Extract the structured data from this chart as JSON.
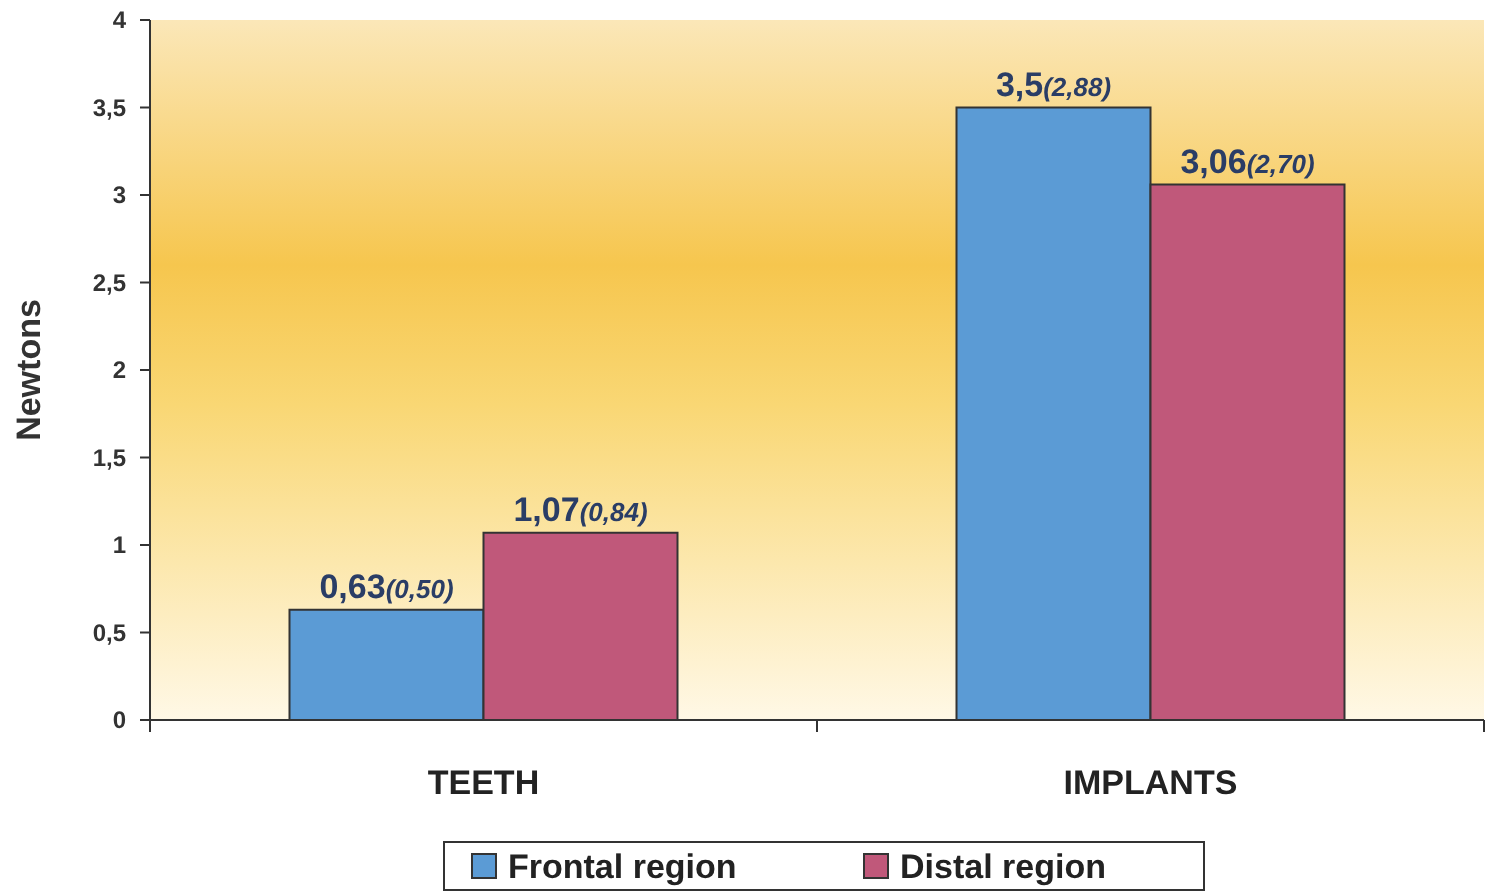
{
  "chart_data": {
    "type": "bar",
    "ylabel": "Newtons",
    "categories": [
      "TEETH",
      "IMPLANTS"
    ],
    "series": [
      {
        "name": "Frontal region",
        "color": "#5b9bd5",
        "values": [
          0.63,
          3.5
        ],
        "value_labels": [
          "0,63(0,50)",
          "3,5(2,88)"
        ]
      },
      {
        "name": "Distal region",
        "color": "#c0587a",
        "values": [
          1.07,
          3.06
        ],
        "value_labels": [
          "1,07(0,84)",
          "3,06(2,70)"
        ]
      }
    ],
    "ylim": [
      0,
      4
    ],
    "yticks": [
      0,
      {
        "value": 0.5,
        "label": "0,5"
      },
      1,
      {
        "value": 1.5,
        "label": "1,5"
      },
      2,
      {
        "value": 2.5,
        "label": "2,5"
      },
      3,
      {
        "value": 3.5,
        "label": "3,5"
      },
      4
    ],
    "grid": false,
    "legend": "bottom"
  }
}
